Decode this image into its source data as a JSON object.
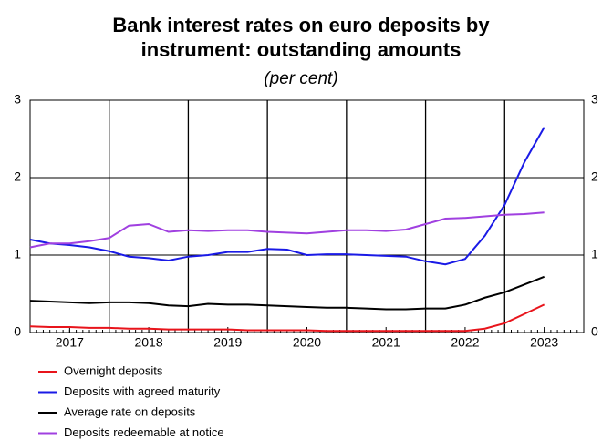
{
  "chart_data": {
    "type": "line",
    "title": "Bank interest rates on euro deposits by instrument: outstanding amounts",
    "subtitle": "(per cent)",
    "x": [
      2017,
      2017.25,
      2017.5,
      2017.75,
      2018,
      2018.25,
      2018.5,
      2018.75,
      2019,
      2019.25,
      2019.5,
      2019.75,
      2020,
      2020.25,
      2020.5,
      2020.75,
      2021,
      2021.25,
      2021.5,
      2021.75,
      2022,
      2022.25,
      2022.5,
      2022.75,
      2023,
      2023.25,
      2023.5
    ],
    "series": [
      {
        "name": "Overnight deposits",
        "color": "#e8141b",
        "values": [
          0.08,
          0.07,
          0.07,
          0.06,
          0.06,
          0.05,
          0.05,
          0.04,
          0.04,
          0.04,
          0.04,
          0.03,
          0.03,
          0.03,
          0.03,
          0.02,
          0.02,
          0.02,
          0.02,
          0.02,
          0.02,
          0.02,
          0.02,
          0.05,
          0.12,
          0.24,
          0.36
        ]
      },
      {
        "name": "Deposits with agreed maturity",
        "color": "#1a1ae6",
        "values": [
          1.2,
          1.15,
          1.13,
          1.1,
          1.05,
          0.98,
          0.96,
          0.93,
          0.98,
          1.0,
          1.04,
          1.04,
          1.08,
          1.07,
          1.0,
          1.01,
          1.01,
          1.0,
          0.99,
          0.98,
          0.92,
          0.88,
          0.95,
          1.25,
          1.65,
          2.2,
          2.65
        ]
      },
      {
        "name": "Average rate on deposits",
        "color": "#000000",
        "values": [
          0.41,
          0.4,
          0.39,
          0.38,
          0.39,
          0.39,
          0.38,
          0.35,
          0.34,
          0.37,
          0.36,
          0.36,
          0.35,
          0.34,
          0.33,
          0.32,
          0.32,
          0.31,
          0.3,
          0.3,
          0.31,
          0.31,
          0.36,
          0.45,
          0.52,
          0.62,
          0.72
        ]
      },
      {
        "name": "Deposits redeemable at notice",
        "color": "#a040e0",
        "values": [
          1.1,
          1.15,
          1.15,
          1.18,
          1.22,
          1.38,
          1.4,
          1.3,
          1.32,
          1.31,
          1.32,
          1.32,
          1.3,
          1.29,
          1.28,
          1.3,
          1.32,
          1.32,
          1.31,
          1.33,
          1.4,
          1.47,
          1.48,
          1.5,
          1.52,
          1.53,
          1.55
        ]
      }
    ],
    "xlim": [
      2017,
      2024
    ],
    "xticks": [
      {
        "value": 2017.5,
        "label": "2017"
      },
      {
        "value": 2018.5,
        "label": "2018"
      },
      {
        "value": 2019.5,
        "label": "2019"
      },
      {
        "value": 2020.5,
        "label": "2020"
      },
      {
        "value": 2021.5,
        "label": "2021"
      },
      {
        "value": 2022.5,
        "label": "2022"
      },
      {
        "value": 2023.5,
        "label": "2023"
      }
    ],
    "x_gridlines": [
      2018,
      2019,
      2020,
      2021,
      2022,
      2023
    ],
    "ylim": [
      0,
      3
    ],
    "yticks": [
      0,
      1,
      2,
      3
    ],
    "y2lim": [
      0,
      3
    ],
    "y2ticks": [
      0,
      1,
      2,
      3
    ],
    "grid": true,
    "legend": "bottom-left"
  }
}
